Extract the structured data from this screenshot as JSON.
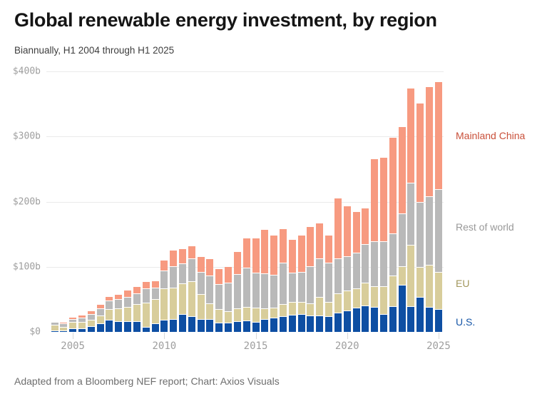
{
  "footer": {
    "credit": "Adapted from a Bloomberg NEF report; Chart: Axios Visuals"
  },
  "chart_data": {
    "type": "bar",
    "stacked": true,
    "title": "Global renewable energy investment, by region",
    "subtitle": "Biannually, H1 2004 through H1 2025",
    "unit": "billions of US dollars",
    "ylim": [
      0,
      400
    ],
    "grid": true,
    "legend_position": "right",
    "y_ticks": [
      "$400b",
      "$300b",
      "$200b",
      "$100b",
      "$0"
    ],
    "y_tick_values": [
      400,
      300,
      200,
      100,
      0
    ],
    "x_ticks": [
      "2005",
      "2010",
      "2015",
      "2020",
      "2025"
    ],
    "categories": [
      "H1 2004",
      "H2 2004",
      "H1 2005",
      "H2 2005",
      "H1 2006",
      "H2 2006",
      "H1 2007",
      "H2 2007",
      "H1 2008",
      "H2 2008",
      "H1 2009",
      "H2 2009",
      "H1 2010",
      "H2 2010",
      "H1 2011",
      "H2 2011",
      "H1 2012",
      "H2 2012",
      "H1 2013",
      "H2 2013",
      "H1 2014",
      "H2 2014",
      "H1 2015",
      "H2 2015",
      "H1 2016",
      "H2 2016",
      "H1 2017",
      "H2 2017",
      "H1 2018",
      "H2 2018",
      "H1 2019",
      "H2 2019",
      "H1 2020",
      "H2 2020",
      "H1 2021",
      "H2 2021",
      "H1 2022",
      "H2 2022",
      "H1 2023",
      "H2 2023",
      "H1 2024",
      "H2 2024",
      "H1 2025"
    ],
    "series": [
      {
        "name": "U.S.",
        "color": "#0e4fa3",
        "label_color": "#1656a7",
        "values": [
          2.5,
          2.5,
          5,
          6,
          9,
          13,
          19,
          17,
          16.5,
          16,
          7.5,
          13,
          18.5,
          19.5,
          27.5,
          24.5,
          20,
          19.5,
          14.5,
          14,
          16.5,
          17.5,
          15.5,
          19.5,
          22,
          24,
          26,
          27.5,
          25,
          25.5,
          24.5,
          30,
          33,
          37,
          40.5,
          38.5,
          27.5,
          40,
          72,
          39,
          54,
          38,
          35
        ]
      },
      {
        "name": "EU",
        "color": "#d8cd9b",
        "label_color": "#a2975c",
        "values": [
          8,
          5.5,
          10,
          9,
          10,
          12,
          16.5,
          19.5,
          22,
          26.5,
          37,
          37,
          48,
          49,
          47,
          53,
          38,
          24.5,
          20.5,
          17.5,
          20,
          21,
          21.5,
          17,
          15,
          19,
          20.5,
          18.5,
          19,
          28.5,
          21.5,
          29,
          31,
          29.5,
          35,
          31.5,
          42.5,
          47,
          29,
          95,
          46,
          65,
          57
        ]
      },
      {
        "name": "Rest of world",
        "color": "#b9b9b9",
        "label_color": "#999999",
        "values": [
          4.5,
          5.5,
          5,
          7,
          8,
          11,
          12.5,
          14,
          15,
          16.5,
          22,
          17.5,
          27.5,
          32.5,
          30.5,
          35.5,
          34,
          43,
          39,
          44,
          52,
          60,
          54.5,
          53.5,
          50.5,
          63.5,
          45,
          46.5,
          57,
          59,
          60,
          53.5,
          52.5,
          55,
          59,
          69,
          69,
          64,
          81,
          95,
          99.5,
          105,
          127
        ]
      },
      {
        "name": "Mainland China",
        "color": "#f79a80",
        "label_color": "#c9503a",
        "values": [
          0.5,
          0.5,
          3.5,
          4.5,
          5.5,
          6.5,
          7,
          7.5,
          11,
          11,
          11,
          11.5,
          16.5,
          25,
          23,
          19.5,
          24,
          26,
          24,
          25,
          35,
          46,
          53,
          68,
          62,
          52.5,
          51.5,
          56.5,
          61.5,
          54.5,
          43,
          93.5,
          77.5,
          63.5,
          56,
          127,
          130,
          148.5,
          133.5,
          146,
          152.5,
          169,
          166
        ]
      }
    ]
  }
}
